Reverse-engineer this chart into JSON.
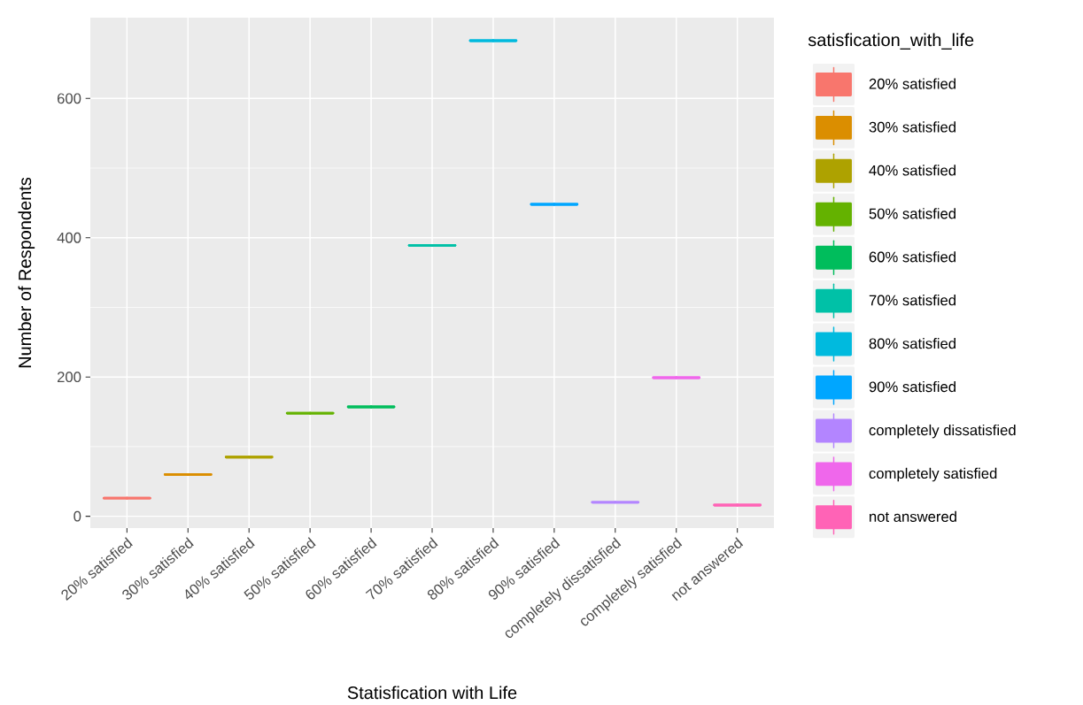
{
  "chart_data": {
    "type": "box",
    "xlabel": "Statisfication with Life",
    "ylabel": "Number of Respondents",
    "legend_title": "satisfication_with_life",
    "categories": [
      "20% satisfied",
      "30% satisfied",
      "40% satisfied",
      "50% satisfied",
      "60% satisfied",
      "70% satisfied",
      "80% satisfied",
      "90% satisfied",
      "completely dissatisfied",
      "completely satisfied",
      "not answered"
    ],
    "series": [
      {
        "name": "20% satisfied",
        "color": "#F8766D",
        "boxes": [
          {
            "low": 26,
            "q1": 26,
            "median": 26,
            "q3": 26,
            "high": 26
          },
          null,
          null,
          null,
          null,
          null,
          null,
          null,
          null,
          null,
          null
        ]
      },
      {
        "name": "30% satisfied",
        "color": "#DB8E00",
        "boxes": [
          null,
          {
            "low": 60,
            "q1": 60,
            "median": 60,
            "q3": 60,
            "high": 60
          },
          null,
          null,
          null,
          null,
          null,
          null,
          null,
          null,
          null
        ]
      },
      {
        "name": "40% satisfied",
        "color": "#AEA200",
        "boxes": [
          null,
          null,
          {
            "low": 85,
            "q1": 85,
            "median": 85,
            "q3": 85,
            "high": 85
          },
          null,
          null,
          null,
          null,
          null,
          null,
          null,
          null
        ]
      },
      {
        "name": "50% satisfied",
        "color": "#64B200",
        "boxes": [
          null,
          null,
          null,
          {
            "low": 148,
            "q1": 148,
            "median": 148,
            "q3": 148,
            "high": 148
          },
          null,
          null,
          null,
          null,
          null,
          null,
          null
        ]
      },
      {
        "name": "60% satisfied",
        "color": "#00BD5C",
        "boxes": [
          null,
          null,
          null,
          null,
          {
            "low": 157,
            "q1": 157,
            "median": 157,
            "q3": 157,
            "high": 157
          },
          null,
          null,
          null,
          null,
          null,
          null
        ]
      },
      {
        "name": "70% satisfied",
        "color": "#00C1A7",
        "boxes": [
          null,
          null,
          null,
          null,
          null,
          {
            "low": 389,
            "q1": 389,
            "median": 389,
            "q3": 389,
            "high": 389
          },
          null,
          null,
          null,
          null,
          null
        ]
      },
      {
        "name": "80% satisfied",
        "color": "#00BADE",
        "boxes": [
          null,
          null,
          null,
          null,
          null,
          null,
          {
            "low": 683,
            "q1": 683,
            "median": 683,
            "q3": 683,
            "high": 683
          },
          null,
          null,
          null,
          null
        ]
      },
      {
        "name": "90% satisfied",
        "color": "#00A6FF",
        "boxes": [
          null,
          null,
          null,
          null,
          null,
          null,
          null,
          {
            "low": 448,
            "q1": 448,
            "median": 448,
            "q3": 448,
            "high": 448
          },
          null,
          null,
          null
        ]
      },
      {
        "name": "completely dissatisfied",
        "color": "#B385FF",
        "boxes": [
          null,
          null,
          null,
          null,
          null,
          null,
          null,
          null,
          {
            "low": 20,
            "q1": 20,
            "median": 20,
            "q3": 20,
            "high": 20
          },
          null,
          null
        ]
      },
      {
        "name": "completely satisfied",
        "color": "#EF67EB",
        "boxes": [
          null,
          null,
          null,
          null,
          null,
          null,
          null,
          null,
          null,
          {
            "low": 199,
            "q1": 199,
            "median": 199,
            "q3": 199,
            "high": 199
          },
          null
        ]
      },
      {
        "name": "not answered",
        "color": "#FF63B6",
        "boxes": [
          null,
          null,
          null,
          null,
          null,
          null,
          null,
          null,
          null,
          null,
          {
            "low": 16,
            "q1": 16,
            "median": 16,
            "q3": 16,
            "high": 16
          }
        ]
      }
    ],
    "ylim": [
      -17,
      716
    ],
    "yticks": [
      0,
      200,
      400,
      600
    ],
    "grid": true,
    "legend": "right"
  }
}
